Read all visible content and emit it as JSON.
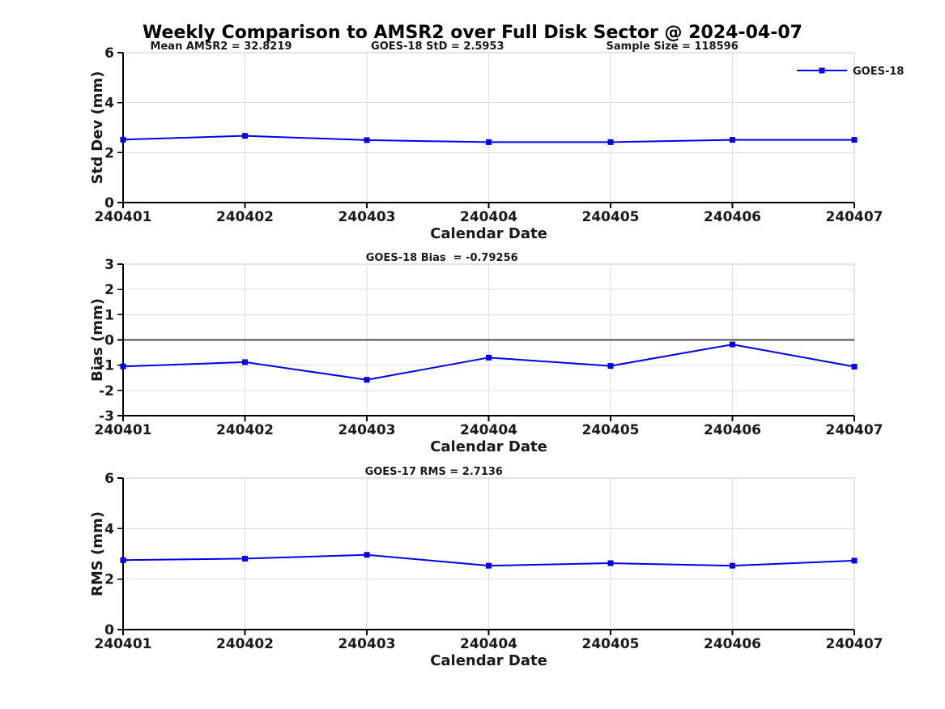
{
  "title": "Weekly Comparison to AMSR2 over Full Disk Sector @ 2024-04-07",
  "colors": {
    "series": "#0000EE",
    "grid": "#dedede",
    "spine_minor": "#c9c9c9",
    "spine_major": "#000000",
    "zero_line": "#4d4d4d",
    "text": "#1a1a1a"
  },
  "chart_data": [
    {
      "id": "std-dev",
      "type": "line",
      "categories": [
        "240401",
        "240402",
        "240403",
        "240404",
        "240405",
        "240406",
        "240407"
      ],
      "series": [
        {
          "name": "GOES-18",
          "values": [
            2.52,
            2.67,
            2.5,
            2.42,
            2.42,
            2.51,
            2.51
          ]
        }
      ],
      "xlabel": "Calendar Date",
      "ylabel": "Std Dev (mm)",
      "ylim": [
        0,
        6
      ],
      "yticks": [
        0,
        2,
        4,
        6
      ],
      "grid": true,
      "zero_line": false,
      "annotations": [
        "Mean AMSR2 = 32.8219",
        "GOES-18 StD = 2.5953",
        "Sample Size = 118596"
      ],
      "legend": {
        "entries": [
          "GOES-18"
        ],
        "position": "top-right"
      }
    },
    {
      "id": "bias",
      "type": "line",
      "categories": [
        "240401",
        "240402",
        "240403",
        "240404",
        "240405",
        "240406",
        "240407"
      ],
      "series": [
        {
          "name": "GOES-18",
          "values": [
            -1.05,
            -0.88,
            -1.58,
            -0.7,
            -1.03,
            -0.18,
            -1.06
          ]
        }
      ],
      "xlabel": "Calendar Date",
      "ylabel": "Bias (mm)",
      "ylim": [
        -3,
        3
      ],
      "yticks": [
        -3,
        -2,
        -1,
        0,
        1,
        2,
        3
      ],
      "grid": true,
      "zero_line": true,
      "annotations": [
        "GOES-18 Bias  = -0.79256"
      ]
    },
    {
      "id": "rms",
      "type": "line",
      "categories": [
        "240401",
        "240402",
        "240403",
        "240404",
        "240405",
        "240406",
        "240407"
      ],
      "series": [
        {
          "name": "GOES-18",
          "values": [
            2.75,
            2.81,
            2.96,
            2.53,
            2.63,
            2.53,
            2.73
          ]
        }
      ],
      "xlabel": "Calendar Date",
      "ylabel": "RMS (mm)",
      "ylim": [
        0,
        6
      ],
      "yticks": [
        0,
        2,
        4,
        6
      ],
      "grid": true,
      "zero_line": false,
      "annotations": [
        "GOES-17 RMS = 2.7136"
      ]
    }
  ]
}
